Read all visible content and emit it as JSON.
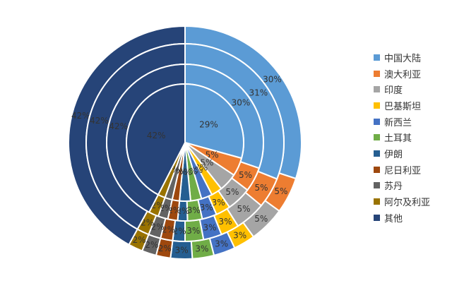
{
  "chart_data": {
    "type": "pie",
    "subtype": "multi-ring concentric (sunburst-style) pie",
    "rings": 4,
    "legend_position": "right",
    "categories": [
      "中国大陆",
      "澳大利亚",
      "印度",
      "巴基斯坦",
      "新西兰",
      "土耳其",
      "伊朗",
      "尼日利亚",
      "苏丹",
      "阿尔及利亚",
      "其他"
    ],
    "colors": [
      "#5B9BD5",
      "#ED7D31",
      "#A5A5A5",
      "#FFC000",
      "#4472C4",
      "#70AD47",
      "#255E91",
      "#9E480E",
      "#636363",
      "#997300",
      "#264478"
    ],
    "series": [
      {
        "ring": "outer",
        "values": [
          30,
          5,
          5,
          3,
          3,
          3,
          3,
          2,
          2,
          2,
          42
        ]
      },
      {
        "ring": "third",
        "values": [
          31,
          5,
          5,
          3,
          3,
          3,
          2,
          2,
          2,
          2,
          42
        ]
      },
      {
        "ring": "second",
        "values": [
          30,
          5,
          5,
          3,
          3,
          3,
          2,
          2,
          2,
          2,
          42
        ]
      },
      {
        "ring": "inner",
        "values": [
          29,
          5,
          5,
          3,
          3,
          3,
          3,
          2,
          2,
          2,
          42
        ]
      }
    ],
    "data_labels": "percent"
  }
}
